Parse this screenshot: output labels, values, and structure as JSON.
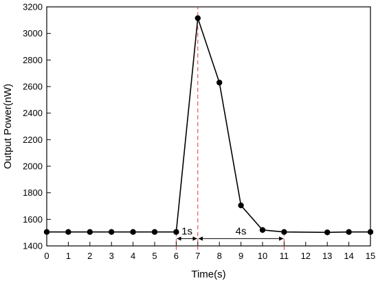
{
  "chart_data": {
    "type": "line",
    "xlabel": "Time(s)",
    "ylabel": "Output Power(nW)",
    "xlim": [
      0,
      15
    ],
    "ylim": [
      1400,
      3200
    ],
    "xticks": [
      0,
      1,
      2,
      3,
      4,
      5,
      6,
      7,
      8,
      9,
      10,
      11,
      12,
      13,
      14,
      15
    ],
    "yticks": [
      1400,
      1600,
      1800,
      2000,
      2200,
      2400,
      2600,
      2800,
      3000,
      3200
    ],
    "grid": false,
    "series": [
      {
        "color": "#000000",
        "points": [
          {
            "x": 0,
            "y": 1505
          },
          {
            "x": 1,
            "y": 1505
          },
          {
            "x": 2,
            "y": 1505
          },
          {
            "x": 3,
            "y": 1505
          },
          {
            "x": 4,
            "y": 1505
          },
          {
            "x": 5,
            "y": 1505
          },
          {
            "x": 6,
            "y": 1505
          },
          {
            "x": 7,
            "y": 3115
          },
          {
            "x": 8,
            "y": 2630
          },
          {
            "x": 9,
            "y": 1705
          },
          {
            "x": 10,
            "y": 1520
          },
          {
            "x": 11,
            "y": 1505
          },
          {
            "x": 13,
            "y": 1502
          },
          {
            "x": 14,
            "y": 1505
          },
          {
            "x": 15,
            "y": 1505
          }
        ]
      }
    ],
    "annotations": {
      "reference_lines": [
        {
          "x": 7,
          "color": "#e03030",
          "style": "dashed",
          "y_from": 1370,
          "y_to": 3200
        },
        {
          "x": 6,
          "color": "#e03030",
          "style": "dashed",
          "y_from": 1370,
          "y_to": 1505
        },
        {
          "x": 11,
          "color": "#e03030",
          "style": "dashed",
          "y_from": 1370,
          "y_to": 1505
        }
      ],
      "intervals": [
        {
          "label": "1s",
          "x_from": 6,
          "x_to": 7,
          "y": 1455,
          "label_y": 1510
        },
        {
          "label": "4s",
          "x_from": 7,
          "x_to": 11,
          "y": 1455,
          "label_y": 1510
        }
      ]
    }
  }
}
